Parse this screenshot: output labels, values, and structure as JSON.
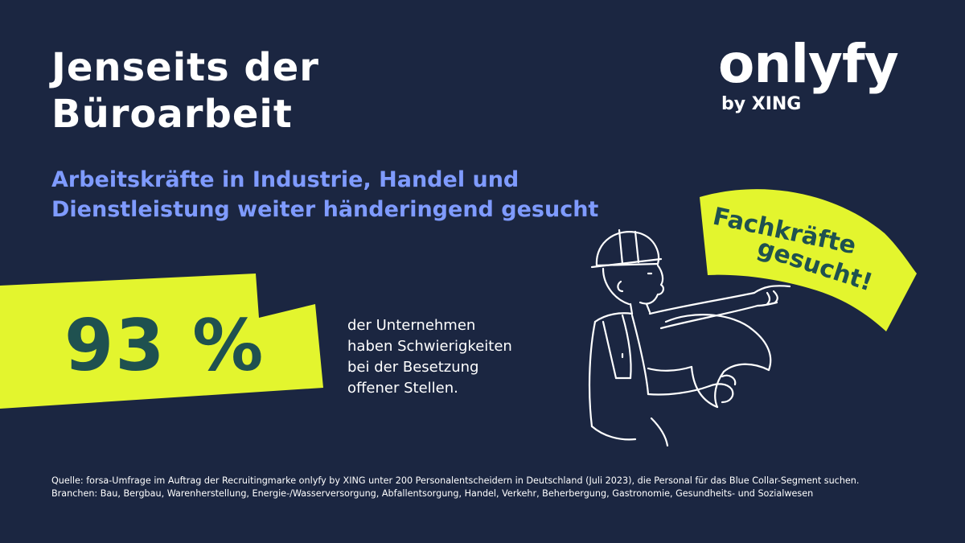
{
  "title": {
    "line1": "Jenseits der",
    "line2": "Büroarbeit"
  },
  "subtitle": {
    "line1": "Arbeitskräfte in Industrie, Handel und",
    "line2": "Dienstleistung weiter händeringend gesucht"
  },
  "logo": {
    "wordmark": "onlyfy",
    "tagline": "by XING"
  },
  "stat": {
    "value": "93 %",
    "description": [
      "der Unternehmen",
      "haben Schwierigkeiten",
      "bei der Besetzung",
      "offener Stellen."
    ]
  },
  "banner": {
    "line1": "Fachkräfte",
    "line2": "gesucht!"
  },
  "source": {
    "line1": "Quelle: forsa-Umfrage im Auftrag der Recruitingmarke onlyfy by XING unter 200 Personalentscheidern in Deutschland (Juli 2023), die Personal für das Blue Collar-Segment suchen.",
    "line2": "Branchen: Bau, Bergbau, Warenherstellung, Energie-/Wasserversorgung, Abfallentsorgung, Handel, Verkehr, Beherbergung, Gastronomie, Gesundheits- und Sozialwesen"
  },
  "colors": {
    "background": "#1b2641",
    "accent_lime": "#e3f52e",
    "subtitle_blue": "#7f9bff",
    "stat_text": "#1f5150",
    "white": "#ffffff"
  },
  "icons": {
    "illustration": "worker-pointing-illustration"
  }
}
